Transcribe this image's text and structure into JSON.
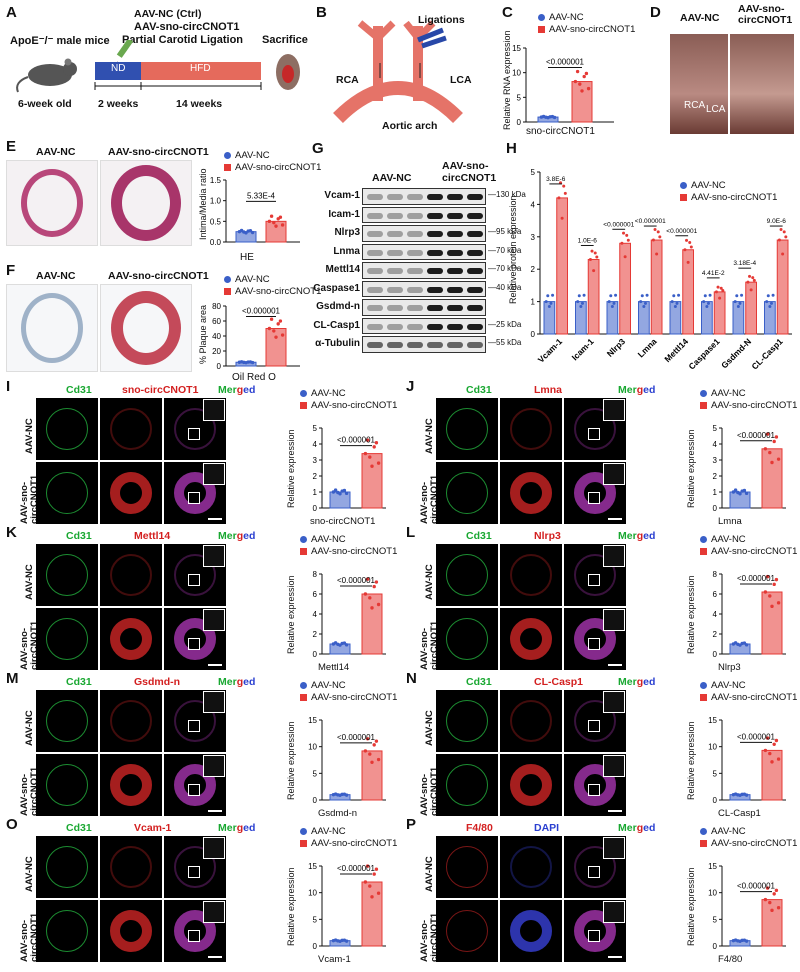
{
  "A": {
    "letter": "A",
    "mice": "ApoE⁻/⁻ male mice",
    "treatment_line1": "AAV-NC (Ctrl)",
    "treatment_line2": "AAV-sno-circCNOT1",
    "treatment_line3": "Partial Carotid Ligation",
    "nd": "ND",
    "hfd": "HFD",
    "sacrifice": "Sacrifice",
    "age": "6-week old",
    "t1": "2 weeks",
    "t2": "14 weeks"
  },
  "B": {
    "letter": "B",
    "ligations": "Ligations",
    "rca": "RCA",
    "lca": "LCA",
    "arch": "Aortic arch"
  },
  "C": {
    "letter": "C",
    "ylabel": "Relative RNA expression",
    "xlabel": "sno-circCNOT1",
    "pval": "<0.000001",
    "ticks": [
      "0",
      "5",
      "10",
      "15"
    ]
  },
  "D": {
    "letter": "D",
    "col1": "AAV-NC",
    "col2": "AAV-sno-circCNOT1",
    "rca": "RCA",
    "lca": "LCA"
  },
  "E": {
    "letter": "E",
    "col1": "AAV-NC",
    "col2": "AAV-sno-circCNOT1",
    "ylabel": "Intima/Media ratio",
    "xlabel": "HE",
    "pval": "5.33E-4",
    "ticks": [
      "0.0",
      "0.5",
      "1.0",
      "1.5"
    ]
  },
  "F": {
    "letter": "F",
    "col1": "AAV-NC",
    "col2": "AAV-sno-circCNOT1",
    "ylabel": "% Plaque area",
    "xlabel": "Oil Red O",
    "pval": "<0.000001",
    "ticks": [
      "0",
      "20",
      "40",
      "60",
      "80"
    ]
  },
  "G": {
    "letter": "G",
    "group1": "AAV-NC",
    "group2": "AAV-sno-circCNOT1",
    "proteins": [
      "Vcam-1",
      "Icam-1",
      "Nlrp3",
      "Lnma",
      "Mettl14",
      "Caspase1",
      "Gsdmd-n",
      "CL-Casp1",
      "α-Tubulin"
    ],
    "kda": [
      "130 kDa",
      "95 kDa",
      "70 kDa",
      "70 kDa",
      "40 kDa",
      "25 kDa",
      "55 kDa"
    ]
  },
  "H": {
    "letter": "H",
    "ylabel": "Relative protein expression",
    "ticks": [
      "0",
      "1",
      "2",
      "3",
      "4",
      "5"
    ]
  },
  "legend": {
    "nc": "AAV-NC",
    "sno": "AAV-sno-circCNOT1"
  },
  "colors": {
    "nc": "#3a5fc8",
    "sno": "#e53935"
  },
  "if_panels": [
    {
      "letter": "I",
      "c1": "Cd31",
      "c2": "sno-circCNOT1",
      "c2color": "red",
      "c3": "Merged",
      "row1": "AAV-NC",
      "row2": "AAV-sno-circCNOT1",
      "xlabel": "sno-circCNOT1",
      "pval": "<0.000001",
      "ticks": [
        "0",
        "1",
        "2",
        "3",
        "4",
        "5"
      ]
    },
    {
      "letter": "J",
      "c1": "Cd31",
      "c2": "Lmna",
      "c2color": "red",
      "c3": "Merged",
      "row1": "AAV-NC",
      "row2": "AAV-sno-circCNOT1",
      "xlabel": "Lmna",
      "pval": "<0.000001",
      "ticks": [
        "0",
        "1",
        "2",
        "3",
        "4",
        "5"
      ]
    },
    {
      "letter": "K",
      "c1": "Cd31",
      "c2": "Mettl14",
      "c2color": "red",
      "c3": "Merged",
      "row1": "AAV-NC",
      "row2": "AAV-sno-circCNOT1",
      "xlabel": "Mettl14",
      "pval": "<0.000001",
      "ticks": [
        "0",
        "2",
        "4",
        "6",
        "8"
      ]
    },
    {
      "letter": "L",
      "c1": "Cd31",
      "c2": "Nlrp3",
      "c2color": "red",
      "c3": "Merged",
      "row1": "AAV-NC",
      "row2": "AAV-sno-circCNOT1",
      "xlabel": "Nlrp3",
      "pval": "<0.000001",
      "ticks": [
        "0",
        "2",
        "4",
        "6",
        "8"
      ]
    },
    {
      "letter": "M",
      "c1": "Cd31",
      "c2": "Gsdmd-n",
      "c2color": "red",
      "c3": "Merged",
      "row1": "AAV-NC",
      "row2": "AAV-sno-circCNOT1",
      "xlabel": "Gsdmd-n",
      "pval": "<0.000001",
      "ticks": [
        "0",
        "5",
        "10",
        "15"
      ]
    },
    {
      "letter": "N",
      "c1": "Cd31",
      "c2": "CL-Casp1",
      "c2color": "red",
      "c3": "Merged",
      "row1": "AAV-NC",
      "row2": "AAV-sno-circCNOT1",
      "xlabel": "CL-Casp1",
      "pval": "<0.000001",
      "ticks": [
        "0",
        "5",
        "10",
        "15"
      ]
    },
    {
      "letter": "O",
      "c1": "Cd31",
      "c2": "Vcam-1",
      "c2color": "red",
      "c3": "Merged",
      "row1": "AAV-NC",
      "row2": "AAV-sno-circCNOT1",
      "xlabel": "Vcam-1",
      "pval": "<0.000001",
      "ticks": [
        "0",
        "5",
        "10",
        "15"
      ]
    },
    {
      "letter": "P",
      "c1": "F4/80",
      "c2": "DAPI",
      "c2color": "blue",
      "c3": "Merged",
      "row1": "AAV-NC",
      "row2": "AAV-sno-circCNOT1",
      "xlabel": "F4/80",
      "pval": "<0.000001",
      "ticks": [
        "0",
        "5",
        "10",
        "15"
      ]
    }
  ],
  "chart_data": [
    {
      "panel": "C",
      "type": "bar",
      "categories": [
        "sno-circCNOT1"
      ],
      "ylabel": "Relative RNA expression",
      "ylim": [
        0,
        15
      ],
      "series": [
        {
          "name": "AAV-NC",
          "values": [
            1.0
          ]
        },
        {
          "name": "AAV-sno-circCNOT1",
          "values": [
            8.2
          ]
        }
      ]
    },
    {
      "panel": "E",
      "type": "bar",
      "categories": [
        "HE"
      ],
      "ylabel": "Intima/Media ratio",
      "ylim": [
        0,
        1.5
      ],
      "series": [
        {
          "name": "AAV-NC",
          "values": [
            0.25
          ]
        },
        {
          "name": "AAV-sno-circCNOT1",
          "values": [
            0.5
          ]
        }
      ]
    },
    {
      "panel": "F",
      "type": "bar",
      "categories": [
        "Oil Red O"
      ],
      "ylabel": "% Plaque area",
      "ylim": [
        0,
        80
      ],
      "series": [
        {
          "name": "AAV-NC",
          "values": [
            5
          ]
        },
        {
          "name": "AAV-sno-circCNOT1",
          "values": [
            50
          ]
        }
      ]
    },
    {
      "panel": "H",
      "type": "bar",
      "categories": [
        "Vcam-1",
        "Icam-1",
        "Nlrp3",
        "Lmna",
        "Mettl14",
        "Caspase1",
        "Gsdmd-N",
        "CL-Casp1"
      ],
      "ylabel": "Relative protein expression",
      "ylim": [
        0,
        5
      ],
      "pvalues": [
        "3.8E-6",
        "1.0E-6",
        "<0.000001",
        "<0.000001",
        "<0.000001",
        "4.41E-2",
        "3.18E-4",
        "9.0E-6"
      ],
      "series": [
        {
          "name": "AAV-NC",
          "values": [
            1.0,
            1.0,
            1.0,
            1.0,
            1.0,
            1.0,
            1.0,
            1.0
          ]
        },
        {
          "name": "AAV-sno-circCNOT1",
          "values": [
            4.2,
            2.3,
            2.8,
            2.9,
            2.6,
            1.3,
            1.6,
            2.9
          ]
        }
      ]
    },
    {
      "panel": "I",
      "type": "bar",
      "categories": [
        "sno-circCNOT1"
      ],
      "ylabel": "Relative expression",
      "ylim": [
        0,
        5
      ],
      "series": [
        {
          "name": "AAV-NC",
          "values": [
            1.0
          ]
        },
        {
          "name": "AAV-sno-circCNOT1",
          "values": [
            3.4
          ]
        }
      ]
    },
    {
      "panel": "J",
      "type": "bar",
      "categories": [
        "Lmna"
      ],
      "ylabel": "Relative expression",
      "ylim": [
        0,
        5
      ],
      "series": [
        {
          "name": "AAV-NC",
          "values": [
            1.0
          ]
        },
        {
          "name": "AAV-sno-circCNOT1",
          "values": [
            3.7
          ]
        }
      ]
    },
    {
      "panel": "K",
      "type": "bar",
      "categories": [
        "Mettl14"
      ],
      "ylabel": "Relative expression",
      "ylim": [
        0,
        8
      ],
      "series": [
        {
          "name": "AAV-NC",
          "values": [
            1.0
          ]
        },
        {
          "name": "AAV-sno-circCNOT1",
          "values": [
            6.0
          ]
        }
      ]
    },
    {
      "panel": "L",
      "type": "bar",
      "categories": [
        "Nlrp3"
      ],
      "ylabel": "Relative expression",
      "ylim": [
        0,
        8
      ],
      "series": [
        {
          "name": "AAV-NC",
          "values": [
            1.0
          ]
        },
        {
          "name": "AAV-sno-circCNOT1",
          "values": [
            6.2
          ]
        }
      ]
    },
    {
      "panel": "M",
      "type": "bar",
      "categories": [
        "Gsdmd-n"
      ],
      "ylabel": "Relative expression",
      "ylim": [
        0,
        15
      ],
      "series": [
        {
          "name": "AAV-NC",
          "values": [
            1.0
          ]
        },
        {
          "name": "AAV-sno-circCNOT1",
          "values": [
            9.2
          ]
        }
      ]
    },
    {
      "panel": "N",
      "type": "bar",
      "categories": [
        "CL-Casp1"
      ],
      "ylabel": "Relative expression",
      "ylim": [
        0,
        15
      ],
      "series": [
        {
          "name": "AAV-NC",
          "values": [
            1.0
          ]
        },
        {
          "name": "AAV-sno-circCNOT1",
          "values": [
            9.3
          ]
        }
      ]
    },
    {
      "panel": "O",
      "type": "bar",
      "categories": [
        "Vcam-1"
      ],
      "ylabel": "Relative expression",
      "ylim": [
        0,
        15
      ],
      "series": [
        {
          "name": "AAV-NC",
          "values": [
            1.0
          ]
        },
        {
          "name": "AAV-sno-circCNOT1",
          "values": [
            12.0
          ]
        }
      ]
    },
    {
      "panel": "P",
      "type": "bar",
      "categories": [
        "F4/80"
      ],
      "ylabel": "Relative expression",
      "ylim": [
        0,
        15
      ],
      "series": [
        {
          "name": "AAV-NC",
          "values": [
            1.0
          ]
        },
        {
          "name": "AAV-sno-circCNOT1",
          "values": [
            8.7
          ]
        }
      ]
    }
  ]
}
